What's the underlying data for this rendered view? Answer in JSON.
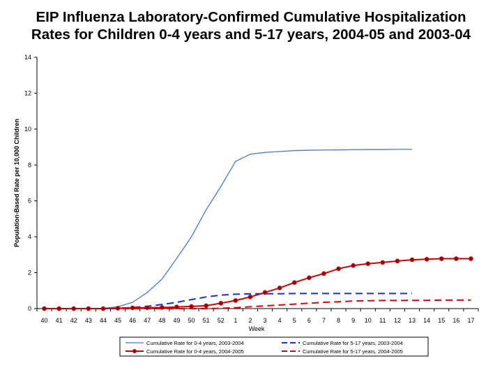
{
  "title_line1": "EIP Influenza Laboratory-Confirmed Cumulative Hospitalization",
  "title_line2": "Rates for Children 0-4 years and 5-17 years, 2004-05 and 2003-04",
  "chart_data": {
    "type": "line",
    "title": "EIP Influenza Laboratory-Confirmed Cumulative Hospitalization Rates for Children 0-4 years and 5-17 years, 2004-05 and 2003-04",
    "xlabel": "Week",
    "ylabel": "Population-Based Rate per 10,000 Children",
    "ylim": [
      0,
      14
    ],
    "yticks": [
      0,
      2,
      4,
      6,
      8,
      10,
      12,
      14
    ],
    "grid": false,
    "legend_position": "bottom",
    "categories": [
      "40",
      "41",
      "42",
      "43",
      "44",
      "45",
      "46",
      "47",
      "48",
      "49",
      "50",
      "51",
      "52",
      "1",
      "2",
      "3",
      "4",
      "5",
      "6",
      "7",
      "8",
      "9",
      "10",
      "11",
      "12",
      "13",
      "14",
      "15",
      "16",
      "17"
    ],
    "series": [
      {
        "name": "Cumulative Rate for 0-4 years, 2003-2004",
        "color": "#4a77d6",
        "style": "solid",
        "markers": false,
        "values": [
          0,
          0,
          0,
          0,
          0.02,
          0.1,
          0.35,
          0.9,
          1.65,
          2.8,
          4.0,
          5.5,
          6.8,
          8.2,
          8.6,
          8.7,
          8.75,
          8.8,
          8.82,
          8.83,
          8.84,
          8.85,
          8.86,
          8.86,
          8.87,
          8.87,
          null,
          null,
          null,
          null
        ]
      },
      {
        "name": "Cumulative Rate for 5-17 years, 2003-2004",
        "color": "#1a2ed6",
        "style": "dashed",
        "markers": false,
        "values": [
          0,
          0,
          0,
          0,
          0,
          0.02,
          0.06,
          0.13,
          0.23,
          0.35,
          0.5,
          0.65,
          0.75,
          0.8,
          0.82,
          0.83,
          0.83,
          0.84,
          0.84,
          0.84,
          0.84,
          0.84,
          0.84,
          0.84,
          0.84,
          0.84,
          null,
          null,
          null,
          null
        ]
      },
      {
        "name": "Cumulative Rate for 0-4 years, 2004-2005",
        "color": "#cc0000",
        "style": "solid",
        "markers": true,
        "values": [
          0,
          0,
          0,
          0,
          0,
          0.02,
          0.04,
          0.05,
          0.06,
          0.09,
          0.12,
          0.16,
          0.3,
          0.45,
          0.65,
          0.9,
          1.15,
          1.45,
          1.72,
          1.95,
          2.22,
          2.4,
          2.5,
          2.57,
          2.65,
          2.72,
          2.75,
          2.78,
          2.78,
          2.78
        ]
      },
      {
        "name": "Cumulative Rate for 5-17 years, 2004-2005",
        "color": "#e00000",
        "style": "dashed",
        "markers": false,
        "values": [
          0,
          0,
          0,
          0,
          0,
          0,
          0,
          0,
          0,
          0,
          0,
          0,
          0.02,
          0.05,
          0.1,
          0.15,
          0.2,
          0.25,
          0.3,
          0.35,
          0.38,
          0.42,
          0.44,
          0.45,
          0.45,
          0.46,
          0.46,
          0.47,
          0.47,
          0.48
        ]
      }
    ]
  }
}
